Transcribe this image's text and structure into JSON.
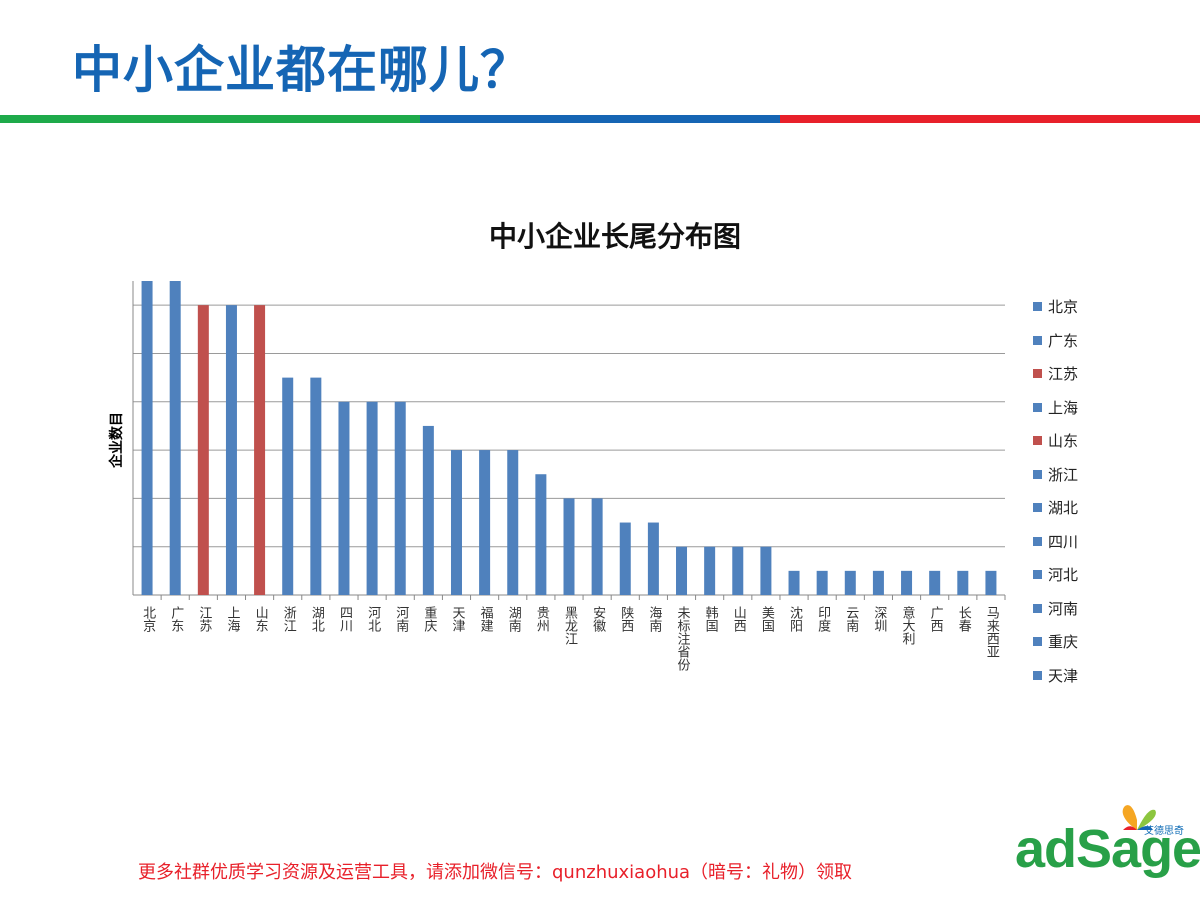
{
  "slide": {
    "title": "中小企业都在哪儿？",
    "rule_colors": [
      "#1eaa4a",
      "#1565b4",
      "#e8202a"
    ]
  },
  "footer": {
    "note": "更多社群优质学习资源及运营工具，请添加微信号：qunzhuxiaohua（暗号：礼物）领取"
  },
  "logo": {
    "tagline": "艾德思奇",
    "wordmark": "adSage"
  },
  "chart_data": {
    "type": "bar",
    "title": "中小企业长尾分布图",
    "xlabel": "",
    "ylabel": "企业数目",
    "ylim": [
      0,
      13
    ],
    "grid": true,
    "tick_labels_shown": false,
    "colors": {
      "default": "#4f81bd",
      "highlight": "#c0504d"
    },
    "categories": [
      "北京",
      "广东",
      "江苏",
      "上海",
      "山东",
      "浙江",
      "湖北",
      "四川",
      "河北",
      "河南",
      "重庆",
      "天津",
      "福建",
      "湖南",
      "贵州",
      "黑龙江",
      "安徽",
      "陕西",
      "海南",
      "未标注省份",
      "韩国",
      "山西",
      "美国",
      "沈阳",
      "印度",
      "云南",
      "深圳",
      "意大利",
      "广西",
      "长春",
      "马来西亚"
    ],
    "values": [
      13,
      13,
      12,
      12,
      12,
      9,
      9,
      8,
      8,
      8,
      7,
      6,
      6,
      6,
      5,
      4,
      4,
      3,
      3,
      2,
      2,
      2,
      2,
      1,
      1,
      1,
      1,
      1,
      1,
      1,
      1
    ],
    "highlight": [
      "江苏",
      "山东"
    ],
    "legend": [
      {
        "label": "北京",
        "color": "#4f81bd"
      },
      {
        "label": "广东",
        "color": "#4f81bd"
      },
      {
        "label": "江苏",
        "color": "#c0504d"
      },
      {
        "label": "上海",
        "color": "#4f81bd"
      },
      {
        "label": "山东",
        "color": "#c0504d"
      },
      {
        "label": "浙江",
        "color": "#4f81bd"
      },
      {
        "label": "湖北",
        "color": "#4f81bd"
      },
      {
        "label": "四川",
        "color": "#4f81bd"
      },
      {
        "label": "河北",
        "color": "#4f81bd"
      },
      {
        "label": "河南",
        "color": "#4f81bd"
      },
      {
        "label": "重庆",
        "color": "#4f81bd"
      },
      {
        "label": "天津",
        "color": "#4f81bd"
      }
    ]
  }
}
